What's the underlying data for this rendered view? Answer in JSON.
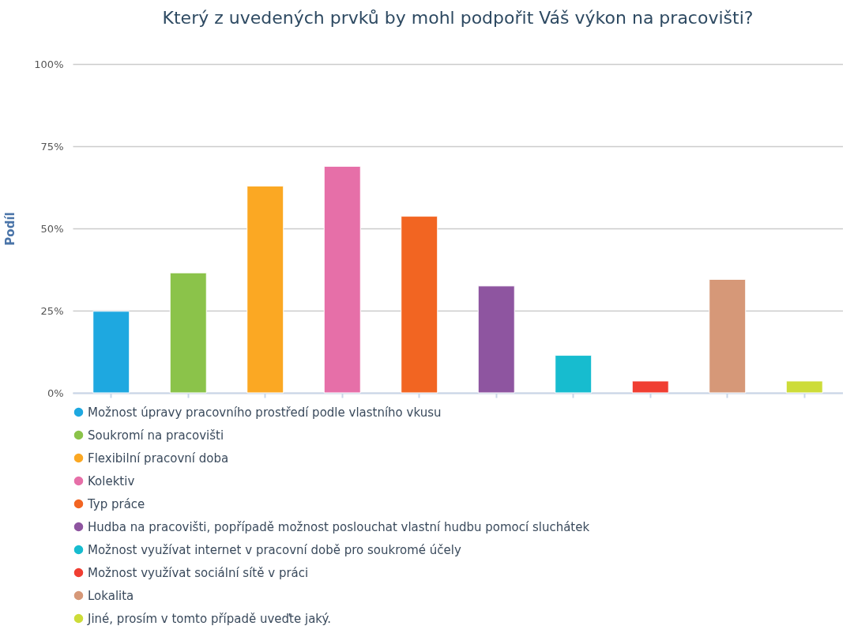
{
  "chart_data": {
    "type": "bar",
    "title": "Který z uvedených prvků by mohl podpořit Váš výkon na pracovišti?",
    "ylabel": "Podíl",
    "categories": [
      null,
      null,
      null,
      null,
      null,
      null,
      null,
      null,
      null,
      null
    ],
    "series": [
      {
        "name": "Možnost úpravy pracovního prostředí podle vlastního vkusu",
        "color": "#1ea8e0",
        "values": [
          24.8,
          null,
          null,
          null,
          null,
          null,
          null,
          null,
          null,
          null
        ]
      },
      {
        "name": "Soukromí na pracovišti",
        "color": "#8bc34a",
        "values": [
          null,
          36.5,
          null,
          null,
          null,
          null,
          null,
          null,
          null,
          null
        ]
      },
      {
        "name": "Flexibilní pracovní doba",
        "color": "#fba823",
        "values": [
          null,
          null,
          62.9,
          null,
          null,
          null,
          null,
          null,
          null,
          null
        ]
      },
      {
        "name": "Kolektiv",
        "color": "#e66fa8",
        "values": [
          null,
          null,
          null,
          68.9,
          null,
          null,
          null,
          null,
          null,
          null
        ]
      },
      {
        "name": "Typ práce",
        "color": "#f26522",
        "values": [
          null,
          null,
          null,
          null,
          53.7,
          null,
          null,
          null,
          null,
          null
        ]
      },
      {
        "name": "Hudba na pracovišti, popřípadě možnost poslouchat vlastní hudbu pomocí sluchátek",
        "color": "#8e55a0",
        "values": [
          null,
          null,
          null,
          null,
          null,
          32.5,
          null,
          null,
          null,
          null
        ]
      },
      {
        "name": "Možnost využívat internet v pracovní době pro soukromé účely",
        "color": "#17bccf",
        "values": [
          null,
          null,
          null,
          null,
          null,
          null,
          11.4,
          null,
          null,
          null
        ]
      },
      {
        "name": "Možnost využívat sociální sítě v práci",
        "color": "#f03e32",
        "values": [
          null,
          null,
          null,
          null,
          null,
          null,
          null,
          3.6,
          null,
          null
        ]
      },
      {
        "name": "Lokalita",
        "color": "#d69878",
        "values": [
          null,
          null,
          null,
          null,
          null,
          null,
          null,
          null,
          34.5,
          null
        ]
      },
      {
        "name": "Jiné, prosím v tomto případě uveďte jaký.",
        "color": "#cddc39",
        "values": [
          null,
          null,
          null,
          null,
          null,
          null,
          null,
          null,
          null,
          3.6
        ]
      }
    ],
    "ylim": [
      0,
      100
    ],
    "yticks": [
      {
        "value": 0,
        "label": "0%"
      },
      {
        "value": 25,
        "label": "25%"
      },
      {
        "value": 50,
        "label": "50%"
      },
      {
        "value": 75,
        "label": "75%"
      },
      {
        "value": 100,
        "label": "100%"
      }
    ],
    "grid": "y",
    "legend": "bottom",
    "tick_labels": "y"
  }
}
